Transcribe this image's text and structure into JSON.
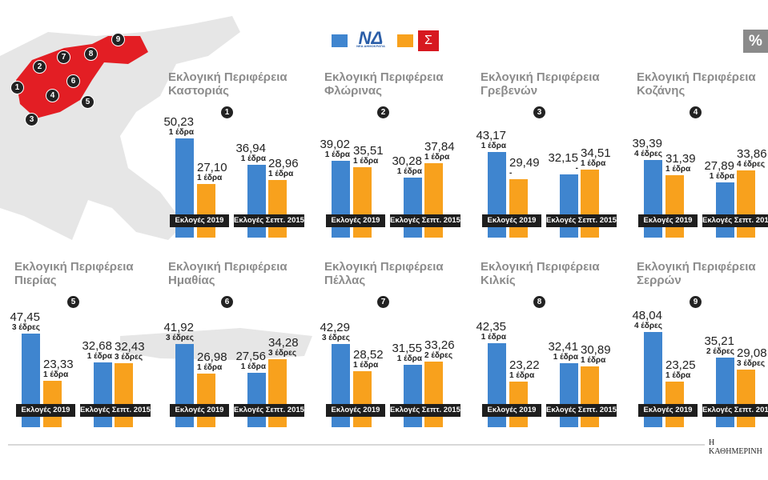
{
  "legend": {
    "party1_sub": "ΝΕΑ ΔΗΜΟΚΡΑΤΙΑ",
    "colors": {
      "party1": "#3f85cf",
      "party2": "#f8a11d"
    }
  },
  "unit_badge": "%",
  "footer": "Η ΚΑΘΗΜΕΡΙΝΗ",
  "chart_data": {
    "type": "bar",
    "categories": [
      "Εκλογές 2019",
      "Εκλογές Σεπτ. 2015"
    ],
    "panels": [
      {
        "num": "1",
        "title1": "Εκλογική Περιφέρεια",
        "title2": "Καστοριάς",
        "values": [
          [
            50.23,
            27.1
          ],
          [
            36.94,
            28.96
          ]
        ],
        "seats": [
          [
            "1 έδρα",
            "1 έδρα"
          ],
          [
            "1 έδρα",
            "1 έδρα"
          ]
        ]
      },
      {
        "num": "2",
        "title1": "Εκλογική Περιφέρεια",
        "title2": "Φλώρινας",
        "values": [
          [
            39.02,
            35.51
          ],
          [
            30.28,
            37.84
          ]
        ],
        "seats": [
          [
            "1 έδρα",
            "1 έδρα"
          ],
          [
            "1 έδρα",
            "1 έδρα"
          ]
        ]
      },
      {
        "num": "3",
        "title1": "Εκλογική Περιφέρεια",
        "title2": "Γρεβενών",
        "values": [
          [
            43.17,
            29.49
          ],
          [
            32.15,
            34.51
          ]
        ],
        "seats": [
          [
            "1 έδρα",
            "-"
          ],
          [
            "-",
            "1 έδρα"
          ]
        ]
      },
      {
        "num": "4",
        "title1": "Εκλογική Περιφέρεια",
        "title2": "Κοζάνης",
        "values": [
          [
            39.39,
            31.39
          ],
          [
            27.89,
            33.86
          ]
        ],
        "seats": [
          [
            "4 έδρες",
            "1 έδρα"
          ],
          [
            "1 έδρα",
            "4 έδρες"
          ]
        ]
      },
      {
        "num": "5",
        "title1": "Εκλογική Περιφέρεια",
        "title2": "Πιερίας",
        "values": [
          [
            47.45,
            23.33
          ],
          [
            32.68,
            32.43
          ]
        ],
        "seats": [
          [
            "3 έδρες",
            "1 έδρα"
          ],
          [
            "1 έδρα",
            "3 έδρες"
          ]
        ]
      },
      {
        "num": "6",
        "title1": "Εκλογική Περιφέρεια",
        "title2": "Ημαθίας",
        "values": [
          [
            41.92,
            26.98
          ],
          [
            27.56,
            34.28
          ]
        ],
        "seats": [
          [
            "3 έδρες",
            "1 έδρα"
          ],
          [
            "1 έδρα",
            "3 έδρες"
          ]
        ]
      },
      {
        "num": "7",
        "title1": "Εκλογική Περιφέρεια",
        "title2": "Πέλλας",
        "values": [
          [
            42.29,
            28.52
          ],
          [
            31.55,
            33.26
          ]
        ],
        "seats": [
          [
            "3 έδρες",
            "1 έδρα"
          ],
          [
            "1 έδρα",
            "2 έδρες"
          ]
        ]
      },
      {
        "num": "8",
        "title1": "Εκλογική Περιφέρεια",
        "title2": "Κιλκίς",
        "values": [
          [
            42.35,
            23.22
          ],
          [
            32.41,
            30.89
          ]
        ],
        "seats": [
          [
            "1 έδρα",
            "1 έδρα"
          ],
          [
            "1 έδρα",
            "1 έδρα"
          ]
        ]
      },
      {
        "num": "9",
        "title1": "Εκλογική Περιφέρεια",
        "title2": "Σερρών",
        "values": [
          [
            48.04,
            23.25
          ],
          [
            35.21,
            29.08
          ]
        ],
        "seats": [
          [
            "4 έδρες",
            "1 έδρα"
          ],
          [
            "2 έδρες",
            "3 έδρες"
          ]
        ]
      }
    ]
  },
  "map": {
    "markers": [
      "1",
      "2",
      "3",
      "4",
      "5",
      "6",
      "7",
      "8",
      "9"
    ],
    "highlight_color": "#e31e24"
  }
}
